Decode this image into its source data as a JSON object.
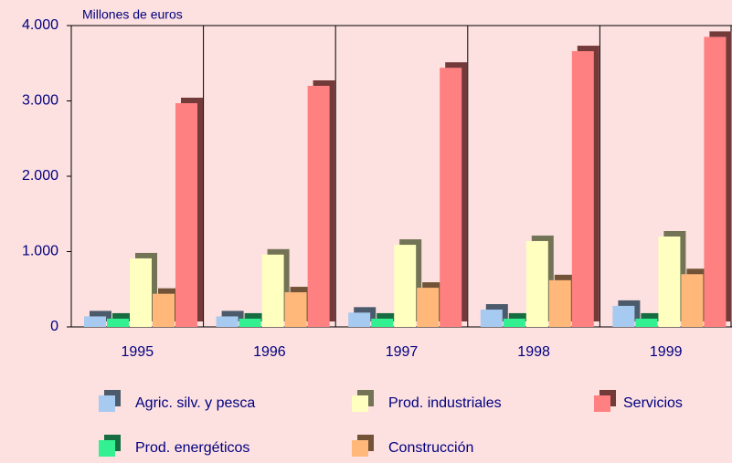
{
  "chart_data": {
    "type": "bar",
    "title": "Millones de euros",
    "categories": [
      "1995",
      "1996",
      "1997",
      "1998",
      "1999"
    ],
    "series": [
      {
        "name": "Agric. silv. y pesca",
        "color": "#a6caf0",
        "values": [
          140,
          140,
          190,
          230,
          280
        ]
      },
      {
        "name": "Prod. energéticos",
        "color": "#33f090",
        "values": [
          110,
          110,
          110,
          110,
          110
        ]
      },
      {
        "name": "Prod. industriales",
        "color": "#ffffc0",
        "values": [
          910,
          960,
          1090,
          1140,
          1200
        ]
      },
      {
        "name": "Construcción",
        "color": "#ffb87a",
        "values": [
          440,
          460,
          520,
          620,
          700
        ]
      },
      {
        "name": "Servicios",
        "color": "#ff8080",
        "values": [
          2970,
          3200,
          3440,
          3660,
          3850
        ]
      }
    ],
    "ylim": [
      0,
      4000
    ],
    "yticks": [
      0,
      {
        "value": 1000,
        "label": "1.000"
      },
      {
        "value": 2000,
        "label": "2.000"
      },
      {
        "value": 3000,
        "label": "3.000"
      },
      {
        "value": 4000,
        "label": "4.000"
      }
    ]
  }
}
